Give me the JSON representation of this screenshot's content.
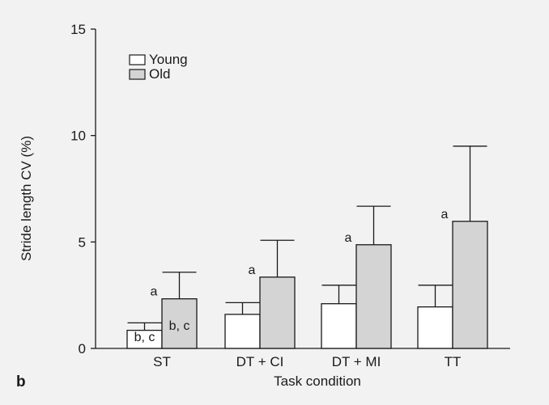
{
  "panel_letter": "b",
  "chart_data": {
    "type": "bar",
    "xlabel": "Task condition",
    "ylabel": "Stride length CV (%)",
    "ylim": [
      0,
      15
    ],
    "yticks": [
      "0",
      "5",
      "10",
      "15"
    ],
    "ytick_values": [
      0,
      5,
      10,
      15
    ],
    "categories": [
      "ST",
      "DT + CI",
      "DT + MI",
      "TT"
    ],
    "legend_position": "top-left",
    "grid": false,
    "series": [
      {
        "name": "Young",
        "color": "#ffffff",
        "values": [
          0.85,
          1.6,
          2.1,
          1.95
        ],
        "error_upper": [
          1.2,
          2.15,
          2.97,
          2.97
        ],
        "annotations": [
          "b, c",
          "",
          "",
          ""
        ]
      },
      {
        "name": "Old",
        "color": "#d4d4d4",
        "values": [
          2.33,
          3.35,
          4.87,
          5.97
        ],
        "error_upper": [
          3.58,
          5.08,
          6.68,
          9.5
        ],
        "annotations": [
          "b, c",
          "",
          "",
          ""
        ],
        "top_labels": [
          "a",
          "a",
          "a",
          "a"
        ]
      }
    ]
  }
}
